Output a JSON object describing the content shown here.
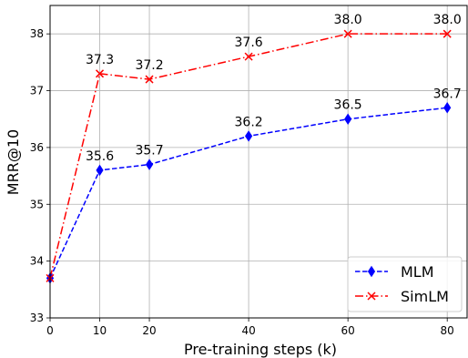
{
  "chart_data": {
    "type": "line",
    "title": "",
    "xlabel": "Pre-training steps (k)",
    "ylabel": "MRR@10",
    "xlim": [
      0,
      84
    ],
    "ylim": [
      33,
      38.5
    ],
    "xticks": [
      0,
      10,
      20,
      40,
      60,
      80
    ],
    "yticks": [
      33,
      34,
      35,
      36,
      37,
      38
    ],
    "grid": true,
    "legend_position": "bottom-right",
    "series": [
      {
        "name": "MLM",
        "color": "#0000ff",
        "marker": "diamond",
        "linestyle": "dashed",
        "x": [
          0,
          10,
          20,
          40,
          60,
          80
        ],
        "y": [
          33.7,
          35.6,
          35.7,
          36.2,
          36.5,
          36.7
        ],
        "labels": [
          "",
          "35.6",
          "35.7",
          "36.2",
          "36.5",
          "36.7"
        ]
      },
      {
        "name": "SimLM",
        "color": "#ff0000",
        "marker": "x",
        "linestyle": "dashdot",
        "x": [
          0,
          10,
          20,
          40,
          60,
          80
        ],
        "y": [
          33.7,
          37.3,
          37.2,
          37.6,
          38.0,
          38.0
        ],
        "labels": [
          "",
          "37.3",
          "37.2",
          "37.6",
          "38.0",
          "38.0"
        ]
      }
    ]
  }
}
